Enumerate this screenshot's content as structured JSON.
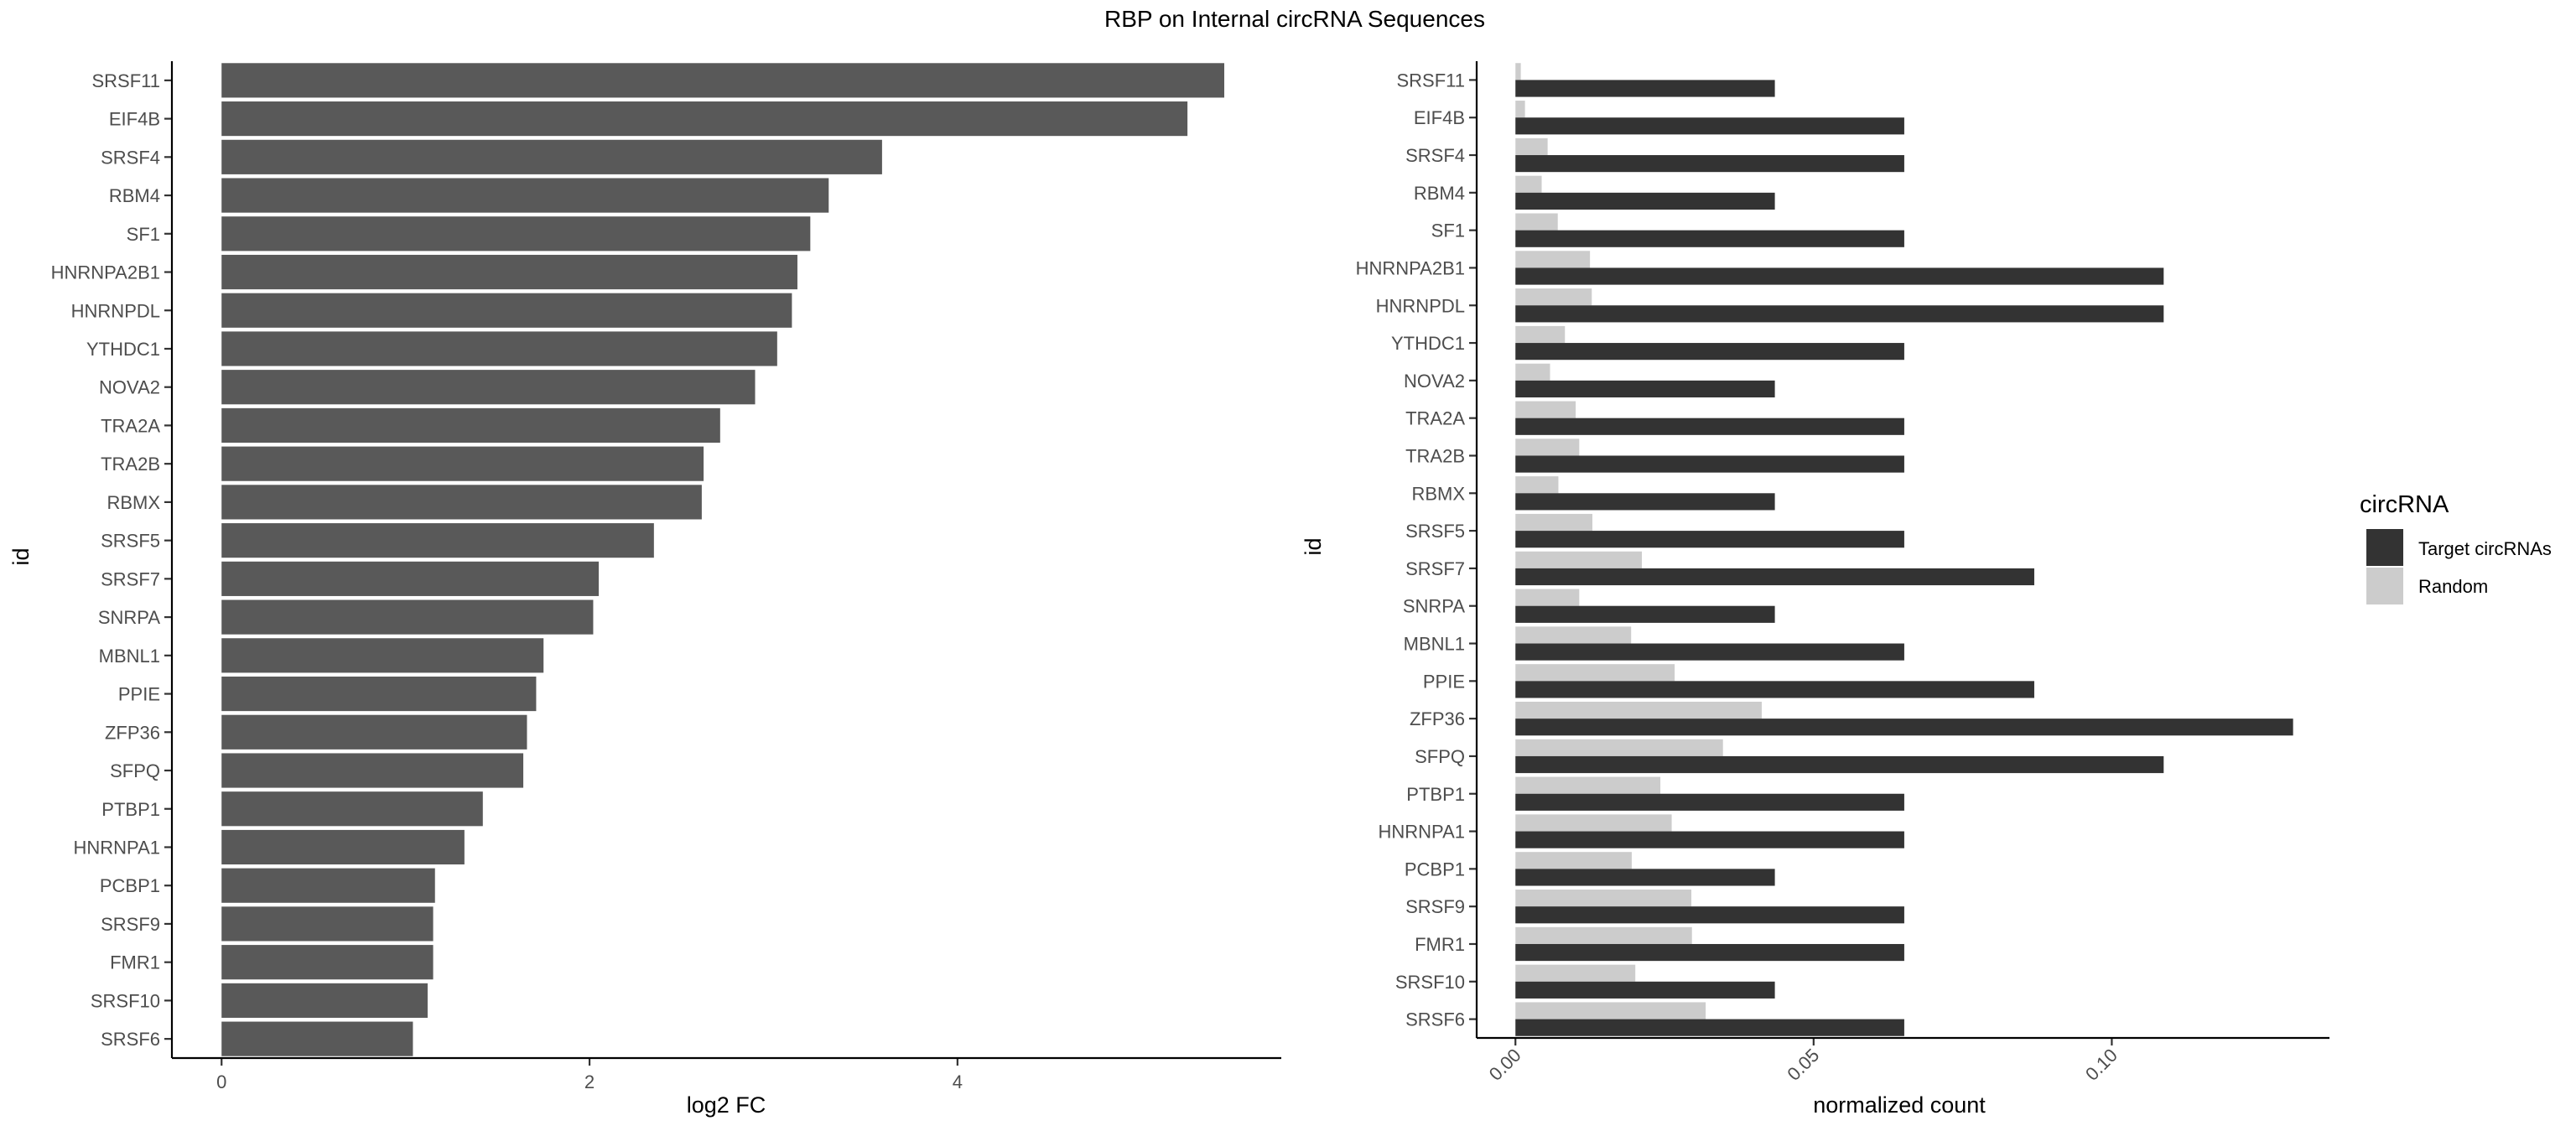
{
  "title": "RBP on Internal circRNA Sequences",
  "chart_data": [
    {
      "type": "bar",
      "orientation": "horizontal",
      "xlabel": "log2 FC",
      "ylabel": "id",
      "xlim": [
        -0.27,
        5.76
      ],
      "xticks": [
        0,
        2,
        4
      ],
      "grid": false,
      "bar_color": "#595959",
      "categories": [
        "SRSF11",
        "EIF4B",
        "SRSF4",
        "RBM4",
        "SF1",
        "HNRNPA2B1",
        "HNRNPDL",
        "YTHDC1",
        "NOVA2",
        "TRA2A",
        "TRA2B",
        "RBMX",
        "SRSF5",
        "SRSF7",
        "SNRPA",
        "MBNL1",
        "PPIE",
        "ZFP36",
        "SFPQ",
        "PTBP1",
        "HNRNPA1",
        "PCBP1",
        "SRSF9",
        "FMR1",
        "SRSF10",
        "SRSF6"
      ],
      "values": [
        5.45,
        5.25,
        3.59,
        3.3,
        3.2,
        3.13,
        3.1,
        3.02,
        2.9,
        2.71,
        2.62,
        2.61,
        2.35,
        2.05,
        2.02,
        1.75,
        1.71,
        1.66,
        1.64,
        1.42,
        1.32,
        1.16,
        1.15,
        1.15,
        1.12,
        1.04
      ]
    },
    {
      "type": "bar",
      "orientation": "horizontal",
      "grouped": true,
      "xlabel": "normalized count",
      "ylabel": "id",
      "xlim": [
        -0.0065,
        0.1365
      ],
      "xticks": [
        0.0,
        0.05,
        0.1
      ],
      "xtick_labels": [
        "0.00",
        "0.05",
        "0.10"
      ],
      "grid": false,
      "legend_title": "circRNA",
      "legend_position": "right",
      "categories": [
        "SRSF11",
        "EIF4B",
        "SRSF4",
        "RBM4",
        "SF1",
        "HNRNPA2B1",
        "HNRNPDL",
        "YTHDC1",
        "NOVA2",
        "TRA2A",
        "TRA2B",
        "RBMX",
        "SRSF5",
        "SRSF7",
        "SNRPA",
        "MBNL1",
        "PPIE",
        "ZFP36",
        "SFPQ",
        "PTBP1",
        "HNRNPA1",
        "PCBP1",
        "SRSF9",
        "FMR1",
        "SRSF10",
        "SRSF6"
      ],
      "series": [
        {
          "name": "Target circRNAs",
          "color": "#333333",
          "values": [
            0.0435,
            0.0652,
            0.0652,
            0.0435,
            0.0652,
            0.1087,
            0.1087,
            0.0652,
            0.0435,
            0.0652,
            0.0652,
            0.0435,
            0.0652,
            0.087,
            0.0435,
            0.0652,
            0.087,
            0.1304,
            0.1087,
            0.0652,
            0.0652,
            0.0435,
            0.0652,
            0.0652,
            0.0435,
            0.0652
          ]
        },
        {
          "name": "Random",
          "color": "#cccccc",
          "values": [
            0.0009,
            0.0016,
            0.0054,
            0.0044,
            0.0071,
            0.0125,
            0.0128,
            0.0083,
            0.0058,
            0.0101,
            0.0107,
            0.0072,
            0.0129,
            0.0212,
            0.0107,
            0.0194,
            0.0267,
            0.0413,
            0.0348,
            0.0243,
            0.0262,
            0.0195,
            0.0295,
            0.0296,
            0.0201,
            0.0319
          ]
        }
      ]
    }
  ]
}
